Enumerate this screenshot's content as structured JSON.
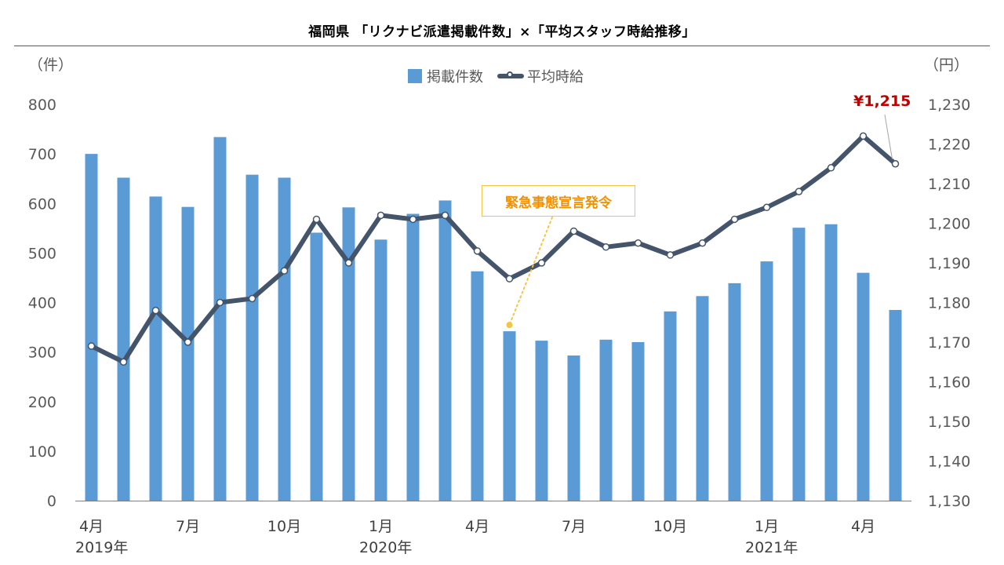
{
  "title": "福岡県 「リクナビ派遣掲載件数」×「平均スタッフ時給推移」",
  "left_unit": "（件）",
  "right_unit": "（円）",
  "callout": "緊急事態宣言発令",
  "last_value_label": "¥1,215",
  "years": [
    "2019年",
    "2020年",
    "2021年"
  ],
  "colors": {
    "bar": "#5b9bd5",
    "line": "#44546a",
    "callout_text": "#f29100",
    "callout_border": "#f4c542",
    "highlight": "#c00000"
  },
  "chart_data": {
    "type": "bar+line",
    "categories": [
      "4月",
      "",
      "",
      "7月",
      "",
      "",
      "10月",
      "",
      "",
      "1月",
      "",
      "",
      "4月",
      "",
      "",
      "7月",
      "",
      "",
      "10月",
      "",
      "",
      "1月",
      "",
      "",
      "4月",
      ""
    ],
    "series": [
      {
        "name": "掲載件数",
        "type": "bar",
        "axis": "left",
        "values": [
          700,
          652,
          614,
          593,
          734,
          658,
          652,
          541,
          592,
          527,
          579,
          606,
          463,
          342,
          323,
          293,
          325,
          320,
          382,
          413,
          439,
          483,
          551,
          558,
          460,
          385
        ]
      },
      {
        "name": "平均時給",
        "type": "line",
        "axis": "right",
        "values": [
          1169,
          1165,
          1178,
          1170,
          1180,
          1181,
          1188,
          1201,
          1190,
          1202,
          1201,
          1202,
          1193,
          1186,
          1190,
          1198,
          1194,
          1195,
          1192,
          1195,
          1201,
          1204,
          1208,
          1214,
          1222,
          1215
        ]
      }
    ],
    "y_left": {
      "min": 0,
      "max": 800,
      "step": 100,
      "ticks": [
        "0",
        "100",
        "200",
        "300",
        "400",
        "500",
        "600",
        "700",
        "800"
      ]
    },
    "y_right": {
      "min": 1130,
      "max": 1230,
      "step": 10,
      "ticks": [
        "1,130",
        "1,140",
        "1,150",
        "1,160",
        "1,170",
        "1,180",
        "1,190",
        "1,200",
        "1,210",
        "1,220",
        "1,230"
      ]
    },
    "grid": false,
    "legend_position": "top-center"
  }
}
